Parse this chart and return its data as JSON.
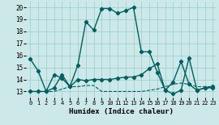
{
  "xlabel": "Humidex (Indice chaleur)",
  "background_color": "#cce8e8",
  "grid_color": "#99cccc",
  "line_color": "#005f5f",
  "xlim": [
    -0.5,
    23.5
  ],
  "ylim": [
    12.5,
    20.5
  ],
  "yticks": [
    13,
    14,
    15,
    16,
    17,
    18,
    19,
    20
  ],
  "xticks": [
    0,
    1,
    2,
    3,
    4,
    5,
    6,
    7,
    8,
    9,
    10,
    11,
    12,
    13,
    14,
    15,
    16,
    17,
    18,
    19,
    20,
    21,
    22,
    23
  ],
  "series": [
    {
      "x": [
        0,
        1,
        2,
        3,
        4,
        5,
        6,
        7,
        8,
        9,
        10,
        11,
        12,
        13,
        14,
        15,
        16,
        17,
        18,
        19,
        20,
        21,
        22,
        23
      ],
      "y": [
        15.7,
        14.7,
        13.0,
        14.4,
        14.1,
        13.4,
        15.2,
        18.8,
        18.1,
        19.9,
        19.9,
        19.5,
        19.7,
        20.0,
        16.3,
        16.3,
        14.6,
        13.1,
        12.8,
        13.1,
        15.8,
        13.1,
        13.3,
        13.3
      ],
      "linestyle": "-",
      "marker": "P",
      "linewidth": 1.0,
      "markersize": 3.0
    },
    {
      "x": [
        0,
        1,
        2,
        3,
        4,
        5,
        6,
        7,
        8,
        9,
        10,
        11,
        12,
        13,
        14,
        15,
        16,
        17,
        18,
        19,
        20,
        21,
        22,
        23
      ],
      "y": [
        13.0,
        13.0,
        13.0,
        13.3,
        14.4,
        13.4,
        14.0,
        13.9,
        14.0,
        14.0,
        14.0,
        14.1,
        14.2,
        14.2,
        14.4,
        14.9,
        15.3,
        13.1,
        13.8,
        15.5,
        13.6,
        13.1,
        13.3,
        13.4
      ],
      "linestyle": "-",
      "marker": "P",
      "linewidth": 1.0,
      "markersize": 3.0
    },
    {
      "x": [
        0,
        1,
        2,
        3,
        4,
        5,
        6,
        7,
        8,
        9,
        10,
        11,
        12,
        13,
        14,
        15,
        16,
        17,
        18,
        19,
        20,
        21,
        22,
        23
      ],
      "y": [
        13.0,
        13.0,
        13.0,
        13.0,
        13.2,
        13.4,
        13.4,
        13.5,
        13.5,
        13.0,
        13.0,
        13.0,
        13.0,
        13.0,
        13.0,
        13.1,
        13.2,
        13.4,
        13.6,
        13.7,
        13.6,
        13.4,
        13.4,
        13.4
      ],
      "linestyle": "--",
      "marker": null,
      "linewidth": 0.8,
      "markersize": 0
    }
  ]
}
